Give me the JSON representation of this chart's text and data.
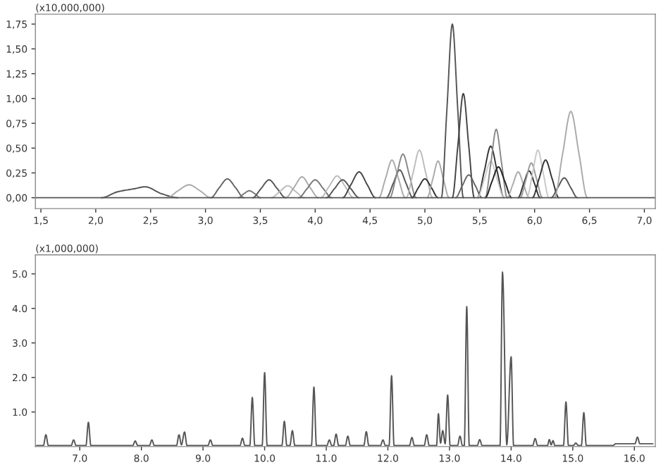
{
  "chart_data": [
    {
      "type": "line",
      "annotations": [
        "(x10,000,000)"
      ],
      "xlim": [
        1.45,
        7.1
      ],
      "ylim": [
        -0.11,
        1.85
      ],
      "xticks": [
        {
          "value": 1.5,
          "label": "1,5"
        },
        {
          "value": 2.0,
          "label": "2,0"
        },
        {
          "value": 2.5,
          "label": "2,5"
        },
        {
          "value": 3.0,
          "label": "3,0"
        },
        {
          "value": 3.5,
          "label": "3,5"
        },
        {
          "value": 4.0,
          "label": "4,0"
        },
        {
          "value": 4.5,
          "label": "4,5"
        },
        {
          "value": 5.0,
          "label": "5,0"
        },
        {
          "value": 5.5,
          "label": "5,5"
        },
        {
          "value": 6.0,
          "label": "6,0"
        },
        {
          "value": 6.5,
          "label": "6,5"
        },
        {
          "value": 7.0,
          "label": "7,0"
        }
      ],
      "yticks": [
        {
          "value": 0,
          "label": "0,00"
        },
        {
          "value": 0.25,
          "label": "0,25"
        },
        {
          "value": 0.5,
          "label": "0,50"
        },
        {
          "value": 0.75,
          "label": "0,75"
        },
        {
          "value": 1.0,
          "label": "1,00"
        },
        {
          "value": 1.25,
          "label": "1,25"
        },
        {
          "value": 1.5,
          "label": "1,50"
        },
        {
          "value": 1.75,
          "label": "1,75"
        }
      ],
      "ref_lines": [
        {
          "axis": "y",
          "value": 0,
          "color": "#555555"
        }
      ],
      "grid": false,
      "marker": "none",
      "line_style": "solid",
      "series": [
        {
          "color": "#555555",
          "x": [
            2.05,
            2.2,
            2.35,
            2.45,
            2.6,
            2.75
          ],
          "values": [
            0,
            0.06,
            0.09,
            0.11,
            0.04,
            0
          ]
        },
        {
          "color": "#aaaaaa",
          "x": [
            2.65,
            2.75,
            2.85,
            2.95,
            3.05
          ],
          "values": [
            0,
            0.07,
            0.13,
            0.07,
            0
          ]
        },
        {
          "color": "#666666",
          "x": [
            3.05,
            3.125,
            3.2,
            3.275,
            3.35
          ],
          "values": [
            0,
            0.1,
            0.19,
            0.1,
            0
          ]
        },
        {
          "color": "#777777",
          "x": [
            3.3,
            3.35,
            3.4,
            3.45,
            3.5
          ],
          "values": [
            0,
            0.04,
            0.07,
            0.04,
            0
          ]
        },
        {
          "color": "#555555",
          "x": [
            3.43,
            3.505,
            3.58,
            3.655,
            3.73
          ],
          "values": [
            0,
            0.09,
            0.18,
            0.09,
            0
          ]
        },
        {
          "color": "#bbbbbb",
          "x": [
            3.6,
            3.675,
            3.75,
            3.825,
            3.9
          ],
          "values": [
            0,
            0.06,
            0.12,
            0.06,
            0
          ]
        },
        {
          "color": "#aaaaaa",
          "x": [
            3.73,
            3.805,
            3.88,
            3.955,
            4.03
          ],
          "values": [
            0,
            0.1,
            0.21,
            0.1,
            0
          ]
        },
        {
          "color": "#777777",
          "x": [
            3.85,
            3.925,
            4.0,
            4.075,
            4.15
          ],
          "values": [
            0,
            0.09,
            0.18,
            0.09,
            0
          ]
        },
        {
          "color": "#bbbbbb",
          "x": [
            4.05,
            4.125,
            4.2,
            4.275,
            4.35
          ],
          "values": [
            0,
            0.11,
            0.22,
            0.11,
            0
          ]
        },
        {
          "color": "#555555",
          "x": [
            4.1,
            4.175,
            4.25,
            4.325,
            4.4
          ],
          "values": [
            0,
            0.09,
            0.18,
            0.09,
            0
          ]
        },
        {
          "color": "#444444",
          "x": [
            4.25,
            4.325,
            4.4,
            4.475,
            4.55
          ],
          "values": [
            0,
            0.13,
            0.26,
            0.13,
            0
          ]
        },
        {
          "color": "#aaaaaa",
          "x": [
            4.58,
            4.64,
            4.7,
            4.76,
            4.82
          ],
          "values": [
            0,
            0.19,
            0.38,
            0.19,
            0
          ]
        },
        {
          "color": "#555555",
          "x": [
            4.65,
            4.71,
            4.77,
            4.83,
            4.89
          ],
          "values": [
            0,
            0.14,
            0.28,
            0.14,
            0
          ]
        },
        {
          "color": "#888888",
          "x": [
            4.68,
            4.74,
            4.8,
            4.86,
            4.92
          ],
          "values": [
            0,
            0.22,
            0.44,
            0.22,
            0
          ]
        },
        {
          "color": "#bbbbbb",
          "x": [
            4.83,
            4.89,
            4.95,
            5.01,
            5.07
          ],
          "values": [
            0,
            0.24,
            0.48,
            0.24,
            0
          ]
        },
        {
          "color": "#333333",
          "x": [
            4.88,
            4.94,
            5.0,
            5.06,
            5.12
          ],
          "values": [
            0,
            0.1,
            0.19,
            0.1,
            0
          ]
        },
        {
          "color": "#aaaaaa",
          "x": [
            5.02,
            5.07,
            5.12,
            5.17,
            5.22
          ],
          "values": [
            0,
            0.18,
            0.37,
            0.18,
            0
          ]
        },
        {
          "color": "#555555",
          "x": [
            5.15,
            5.2,
            5.25,
            5.3,
            5.35
          ],
          "values": [
            0,
            0.88,
            1.75,
            0.88,
            0
          ]
        },
        {
          "color": "#444444",
          "x": [
            5.25,
            5.3,
            5.35,
            5.4,
            5.45
          ],
          "values": [
            0,
            0.52,
            1.05,
            0.52,
            0
          ]
        },
        {
          "color": "#666666",
          "x": [
            5.28,
            5.34,
            5.4,
            5.46,
            5.52
          ],
          "values": [
            0,
            0.12,
            0.23,
            0.12,
            0
          ]
        },
        {
          "color": "#333333",
          "x": [
            5.48,
            5.54,
            5.6,
            5.66,
            5.72
          ],
          "values": [
            0,
            0.26,
            0.52,
            0.26,
            0
          ]
        },
        {
          "color": "#cccccc",
          "x": [
            5.48,
            5.54,
            5.6,
            5.66,
            5.72
          ],
          "values": [
            0,
            0.18,
            0.37,
            0.18,
            0
          ]
        },
        {
          "color": "#888888",
          "x": [
            5.55,
            5.6,
            5.65,
            5.7,
            5.75
          ],
          "values": [
            0,
            0.34,
            0.69,
            0.34,
            0
          ]
        },
        {
          "color": "#222222",
          "x": [
            5.55,
            5.61,
            5.67,
            5.73,
            5.79
          ],
          "values": [
            0,
            0.16,
            0.31,
            0.16,
            0
          ]
        },
        {
          "color": "#aaaaaa",
          "x": [
            5.75,
            5.8,
            5.85,
            5.9,
            5.95
          ],
          "values": [
            0,
            0.13,
            0.26,
            0.13,
            0
          ]
        },
        {
          "color": "#333333",
          "x": [
            5.85,
            5.9,
            5.95,
            6.0,
            6.05
          ],
          "values": [
            0,
            0.14,
            0.27,
            0.14,
            0
          ]
        },
        {
          "color": "#999999",
          "x": [
            5.87,
            5.92,
            5.97,
            6.02,
            6.07
          ],
          "values": [
            0,
            0.18,
            0.35,
            0.18,
            0
          ]
        },
        {
          "color": "#c8c8c8",
          "x": [
            5.93,
            5.98,
            6.03,
            6.08,
            6.13
          ],
          "values": [
            0,
            0.24,
            0.48,
            0.24,
            0
          ]
        },
        {
          "color": "#333333",
          "x": [
            5.98,
            6.04,
            6.1,
            6.16,
            6.22
          ],
          "values": [
            0,
            0.19,
            0.38,
            0.19,
            0
          ]
        },
        {
          "color": "#555555",
          "x": [
            6.15,
            6.21,
            6.27,
            6.33,
            6.39
          ],
          "values": [
            0,
            0.1,
            0.2,
            0.1,
            0
          ]
        },
        {
          "color": "#aaaaaa",
          "x": [
            6.18,
            6.255,
            6.33,
            6.405,
            6.48
          ],
          "values": [
            0,
            0.44,
            0.87,
            0.44,
            0
          ]
        }
      ]
    },
    {
      "type": "line",
      "annotations": [
        "(x1,000,000)"
      ],
      "xlim": [
        6.28,
        16.34
      ],
      "ylim": [
        0,
        5.55
      ],
      "xticks": [
        {
          "value": 7,
          "label": "7.0"
        },
        {
          "value": 8,
          "label": "8.0"
        },
        {
          "value": 9,
          "label": "9.0"
        },
        {
          "value": 10,
          "label": "10.0"
        },
        {
          "value": 11,
          "label": "11.0"
        },
        {
          "value": 12,
          "label": "12.0"
        },
        {
          "value": 13,
          "label": "13.0"
        },
        {
          "value": 14,
          "label": "14.0"
        },
        {
          "value": 15,
          "label": "15.0"
        },
        {
          "value": 16,
          "label": "16.0"
        }
      ],
      "yticks": [
        {
          "value": 1,
          "label": "1.0"
        },
        {
          "value": 2,
          "label": "2.0"
        },
        {
          "value": 3,
          "label": "3.0"
        },
        {
          "value": 4,
          "label": "4.0"
        },
        {
          "value": 5,
          "label": "5.0"
        }
      ],
      "grid": false,
      "marker": "none",
      "line_style": "solid",
      "series": [
        {
          "color": "#555555",
          "x": [
            6.3,
            6.41,
            6.45,
            6.49,
            6.86,
            6.9,
            6.94,
            7.1,
            7.14,
            7.18,
            7.86,
            7.9,
            7.94,
            8.13,
            8.17,
            8.21,
            8.57,
            8.61,
            8.65,
            8.7,
            8.74,
            9.08,
            9.12,
            9.16,
            9.6,
            9.64,
            9.68,
            9.76,
            9.8,
            9.84,
            9.96,
            10.0,
            10.04,
            10.28,
            10.32,
            10.36,
            10.41,
            10.45,
            10.49,
            10.76,
            10.8,
            10.84,
            11.01,
            11.05,
            11.09,
            11.12,
            11.16,
            11.2,
            11.31,
            11.35,
            11.39,
            11.61,
            11.65,
            11.69,
            11.88,
            11.92,
            11.96,
            12.02,
            12.06,
            12.1,
            12.35,
            12.39,
            12.43,
            12.59,
            12.63,
            12.67,
            12.79,
            12.82,
            12.855,
            12.89,
            12.93,
            12.97,
            13.01,
            13.13,
            13.17,
            13.21,
            13.24,
            13.28,
            13.32,
            13.45,
            13.49,
            13.53,
            13.82,
            13.86,
            13.93,
            14.0,
            14.04,
            14.35,
            14.39,
            14.43,
            14.59,
            14.62,
            14.65,
            14.68,
            14.71,
            14.85,
            14.89,
            14.93,
            15.01,
            15.05,
            15.09,
            15.14,
            15.18,
            15.22,
            15.65,
            15.7,
            16.01,
            16.05,
            16.09,
            16.3
          ],
          "values": [
            0.03,
            0.03,
            0.34,
            0.03,
            0.03,
            0.19,
            0.03,
            0.03,
            0.7,
            0.03,
            0.03,
            0.16,
            0.03,
            0.03,
            0.19,
            0.03,
            0.03,
            0.34,
            0.05,
            0.42,
            0.03,
            0.03,
            0.19,
            0.03,
            0.03,
            0.24,
            0.03,
            0.03,
            1.42,
            0.03,
            0.03,
            2.14,
            0.03,
            0.03,
            0.73,
            0.03,
            0.03,
            0.46,
            0.03,
            0.03,
            1.72,
            0.03,
            0.03,
            0.19,
            0.03,
            0.03,
            0.36,
            0.03,
            0.03,
            0.3,
            0.03,
            0.03,
            0.43,
            0.03,
            0.03,
            0.19,
            0.03,
            0.03,
            2.05,
            0.03,
            0.03,
            0.26,
            0.03,
            0.03,
            0.34,
            0.03,
            0.03,
            0.95,
            0.1,
            0.46,
            0.08,
            1.49,
            0.03,
            0.03,
            0.3,
            0.03,
            0.03,
            4.05,
            0.03,
            0.03,
            0.2,
            0.03,
            0.03,
            5.05,
            0.05,
            2.6,
            0.03,
            0.03,
            0.23,
            0.03,
            0.03,
            0.2,
            0.05,
            0.17,
            0.03,
            0.03,
            1.29,
            0.03,
            0.03,
            0.1,
            0.03,
            0.03,
            0.98,
            0.03,
            0.03,
            0.08,
            0.08,
            0.27,
            0.08,
            0.08
          ]
        }
      ]
    }
  ]
}
